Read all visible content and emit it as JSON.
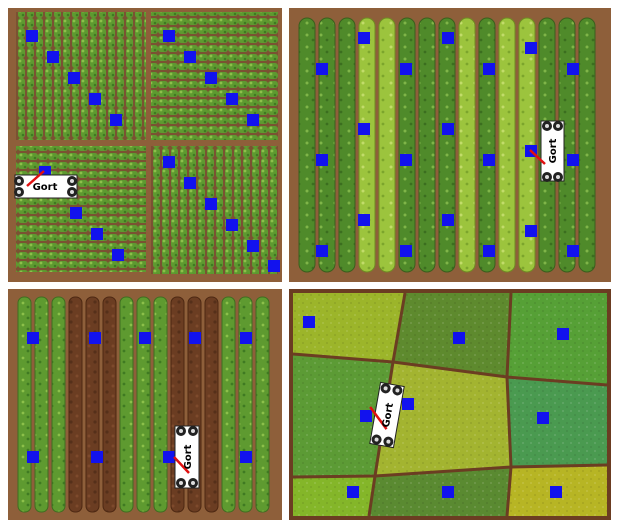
{
  "robot": {
    "name": "Gort"
  },
  "colors": {
    "soil": "#8e5f3a",
    "soil_dark": "#6b3d22",
    "crop_dark": "#4f8a2a",
    "crop_mid": "#6ea83c",
    "crop_light": "#9cc43d",
    "marker": "#1212ee",
    "arm": "#e01010"
  },
  "panels": [
    {
      "id": "top-left",
      "label": ""
    },
    {
      "id": "top-right",
      "label": ""
    },
    {
      "id": "bottom-left",
      "label": ""
    },
    {
      "id": "bottom-right",
      "label": ""
    }
  ]
}
